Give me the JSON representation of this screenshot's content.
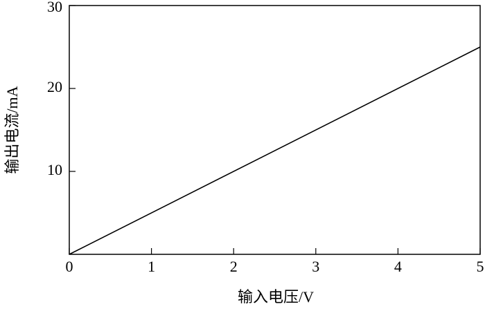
{
  "chart_data": {
    "type": "line",
    "x_label": "输入电压/V",
    "y_label": "输出电流/mA",
    "x": [
      0,
      5
    ],
    "values": [
      0,
      25
    ],
    "color": "#000000",
    "xlim": [
      0,
      5
    ],
    "ylim": [
      0,
      30
    ],
    "xticks": [
      0,
      1,
      2,
      3,
      4,
      5
    ],
    "yticks": [
      10,
      20,
      30
    ],
    "grid": false
  }
}
